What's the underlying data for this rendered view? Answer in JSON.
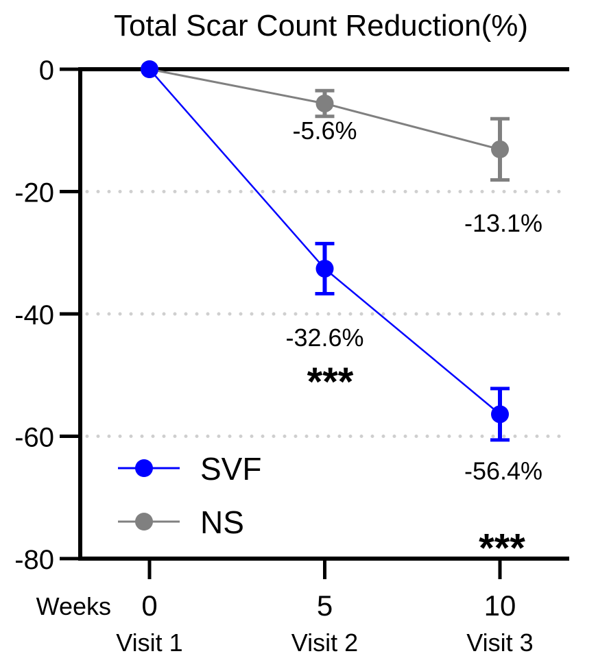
{
  "chart_data": {
    "type": "line",
    "title": "Total Scar Count Reduction(%)",
    "xlabel": "Weeks",
    "x": [
      0,
      5,
      10
    ],
    "x_tick_labels": [
      "0",
      "5",
      "10"
    ],
    "x_sublabels": [
      "Visit 1",
      "Visit 2",
      "Visit 3"
    ],
    "ylim": [
      -80,
      0
    ],
    "y_ticks": [
      0,
      -20,
      -40,
      -60,
      -80
    ],
    "y_tick_labels": [
      "0",
      "-20",
      "-40",
      "-60",
      "-80"
    ],
    "grid": "dotted horizontal at -20, -40, -60",
    "legend": "bottom-left",
    "series": [
      {
        "name": "SVF",
        "color": "#0000ff",
        "values": [
          0,
          -32.6,
          -56.4
        ],
        "errors": [
          0,
          4.1,
          4.2
        ],
        "labels": [
          "",
          "-32.6%",
          "-56.4%"
        ],
        "significance": [
          "",
          "***",
          "***"
        ]
      },
      {
        "name": "NS",
        "color": "#808080",
        "values": [
          0,
          -5.6,
          -13.1
        ],
        "errors": [
          0,
          2.1,
          5.0
        ],
        "labels": [
          "",
          "-5.6%",
          "-13.1%"
        ],
        "significance": [
          "",
          "",
          ""
        ]
      }
    ]
  }
}
